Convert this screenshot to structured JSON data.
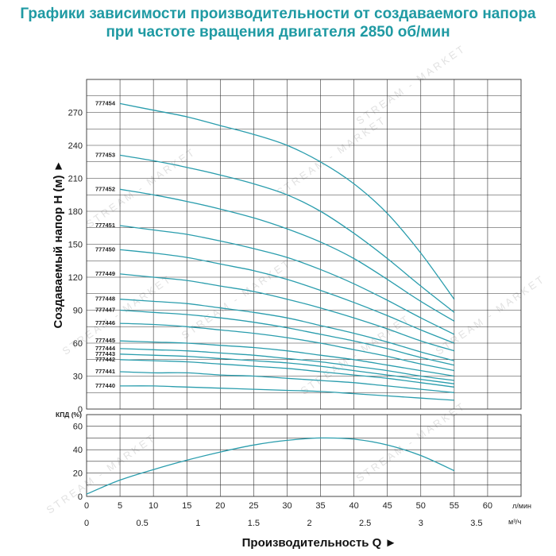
{
  "title_line1": "Графики зависимости производительности от создаваемого напора",
  "title_line2": "при частоте вращения двигателя 2850 об/мин",
  "watermark": "STREAM - MARKET",
  "colors": {
    "title": "#1f9aa3",
    "curve": "#2a9dad",
    "grid": "#333333"
  },
  "chart_data": [
    {
      "type": "line",
      "ylabel": "Создаваемый напор H (м) ►",
      "ylim": [
        0,
        300
      ],
      "yticks": [
        0,
        30,
        60,
        90,
        120,
        150,
        180,
        210,
        240,
        270
      ],
      "xlim": [
        0,
        65
      ],
      "grid": true,
      "series": [
        {
          "name": "777454",
          "x": [
            5,
            10,
            15,
            20,
            25,
            30,
            35,
            40,
            45,
            50,
            55
          ],
          "y": [
            278,
            272,
            266,
            258,
            250,
            240,
            225,
            205,
            178,
            142,
            100
          ]
        },
        {
          "name": "777453",
          "x": [
            5,
            10,
            15,
            20,
            25,
            30,
            35,
            40,
            45,
            50,
            55
          ],
          "y": [
            231,
            226,
            220,
            213,
            205,
            195,
            180,
            160,
            137,
            112,
            88
          ]
        },
        {
          "name": "777452",
          "x": [
            5,
            10,
            15,
            20,
            25,
            30,
            35,
            40,
            45,
            50,
            55
          ],
          "y": [
            200,
            195,
            189,
            182,
            174,
            164,
            152,
            137,
            118,
            98,
            80
          ]
        },
        {
          "name": "777451",
          "x": [
            5,
            10,
            15,
            20,
            25,
            30,
            35,
            40,
            45,
            50,
            55
          ],
          "y": [
            167,
            163,
            159,
            153,
            146,
            138,
            127,
            114,
            99,
            83,
            68
          ]
        },
        {
          "name": "777450",
          "x": [
            5,
            10,
            15,
            20,
            25,
            30,
            35,
            40,
            45,
            50,
            55
          ],
          "y": [
            145,
            142,
            138,
            132,
            126,
            118,
            108,
            97,
            85,
            72,
            60
          ]
        },
        {
          "name": "777449",
          "x": [
            5,
            10,
            15,
            20,
            25,
            30,
            35,
            40,
            45,
            50,
            55
          ],
          "y": [
            123,
            120,
            117,
            112,
            107,
            100,
            92,
            83,
            73,
            62,
            53
          ]
        },
        {
          "name": "777448",
          "x": [
            5,
            10,
            15,
            20,
            25,
            30,
            35,
            40,
            45,
            50,
            55
          ],
          "y": [
            100,
            98,
            96,
            92,
            88,
            83,
            76,
            69,
            61,
            52,
            44
          ]
        },
        {
          "name": "777447",
          "x": [
            5,
            10,
            15,
            20,
            25,
            30,
            35,
            40,
            45,
            50,
            55
          ],
          "y": [
            90,
            88,
            86,
            83,
            79,
            74,
            68,
            62,
            55,
            47,
            40
          ]
        },
        {
          "name": "777446",
          "x": [
            5,
            10,
            15,
            20,
            25,
            30,
            35,
            40,
            45,
            50,
            55
          ],
          "y": [
            78,
            77,
            75,
            72,
            69,
            65,
            60,
            54,
            48,
            41,
            35
          ]
        },
        {
          "name": "777445",
          "x": [
            5,
            10,
            15,
            20,
            25,
            30,
            35,
            40,
            45,
            50,
            55
          ],
          "y": [
            62,
            61,
            60,
            58,
            56,
            53,
            49,
            45,
            40,
            35,
            30
          ]
        },
        {
          "name": "777444",
          "x": [
            5,
            10,
            15,
            20,
            25,
            30,
            35,
            40,
            45,
            50,
            55
          ],
          "y": [
            55,
            54,
            53,
            51,
            49,
            46,
            43,
            39,
            35,
            30,
            26
          ]
        },
        {
          "name": "777443",
          "x": [
            5,
            10,
            15,
            20,
            25,
            30,
            35,
            40,
            45,
            50,
            55
          ],
          "y": [
            50,
            49,
            48,
            46,
            44,
            42,
            39,
            35,
            31,
            27,
            23
          ]
        },
        {
          "name": "777442",
          "x": [
            5,
            10,
            15,
            20,
            25,
            30,
            35,
            40,
            45,
            50,
            55
          ],
          "y": [
            45,
            44,
            43,
            41,
            39,
            37,
            34,
            31,
            28,
            24,
            20
          ]
        },
        {
          "name": "777441",
          "x": [
            5,
            10,
            15,
            20,
            25,
            30,
            35,
            40,
            45,
            50,
            55
          ],
          "y": [
            34,
            33,
            33,
            31,
            30,
            28,
            26,
            24,
            21,
            18,
            15
          ]
        },
        {
          "name": "777440",
          "x": [
            5,
            10,
            15,
            20,
            25,
            30,
            35,
            40,
            45,
            50,
            55
          ],
          "y": [
            21,
            21,
            20,
            19,
            18,
            17,
            16,
            14,
            12,
            10,
            8
          ]
        }
      ]
    },
    {
      "type": "line",
      "ylabel": "КПД (%)",
      "ylim": [
        0,
        70
      ],
      "yticks": [
        0,
        20,
        40,
        60
      ],
      "xlim": [
        0,
        65
      ],
      "grid": true,
      "series": [
        {
          "x": [
            0,
            5,
            10,
            15,
            20,
            25,
            30,
            35,
            40,
            45,
            50,
            55
          ],
          "y": [
            2,
            14,
            23,
            31,
            38,
            44,
            48,
            50,
            49,
            44,
            35,
            22
          ]
        }
      ]
    }
  ],
  "x_axis_lpm": {
    "ticks": [
      "0",
      "5",
      "10",
      "15",
      "20",
      "25",
      "30",
      "35",
      "40",
      "45",
      "50",
      "55",
      "60"
    ],
    "unit": "л/мин"
  },
  "x_axis_m3h": {
    "ticks": [
      "0",
      "0.5",
      "1",
      "1.5",
      "2",
      "2.5",
      "3",
      "3.5"
    ],
    "values": [
      0,
      0.5,
      1,
      1.5,
      2,
      2.5,
      3,
      3.5
    ],
    "unit": "м³/ч"
  },
  "xlabel": "Производительность Q ►"
}
